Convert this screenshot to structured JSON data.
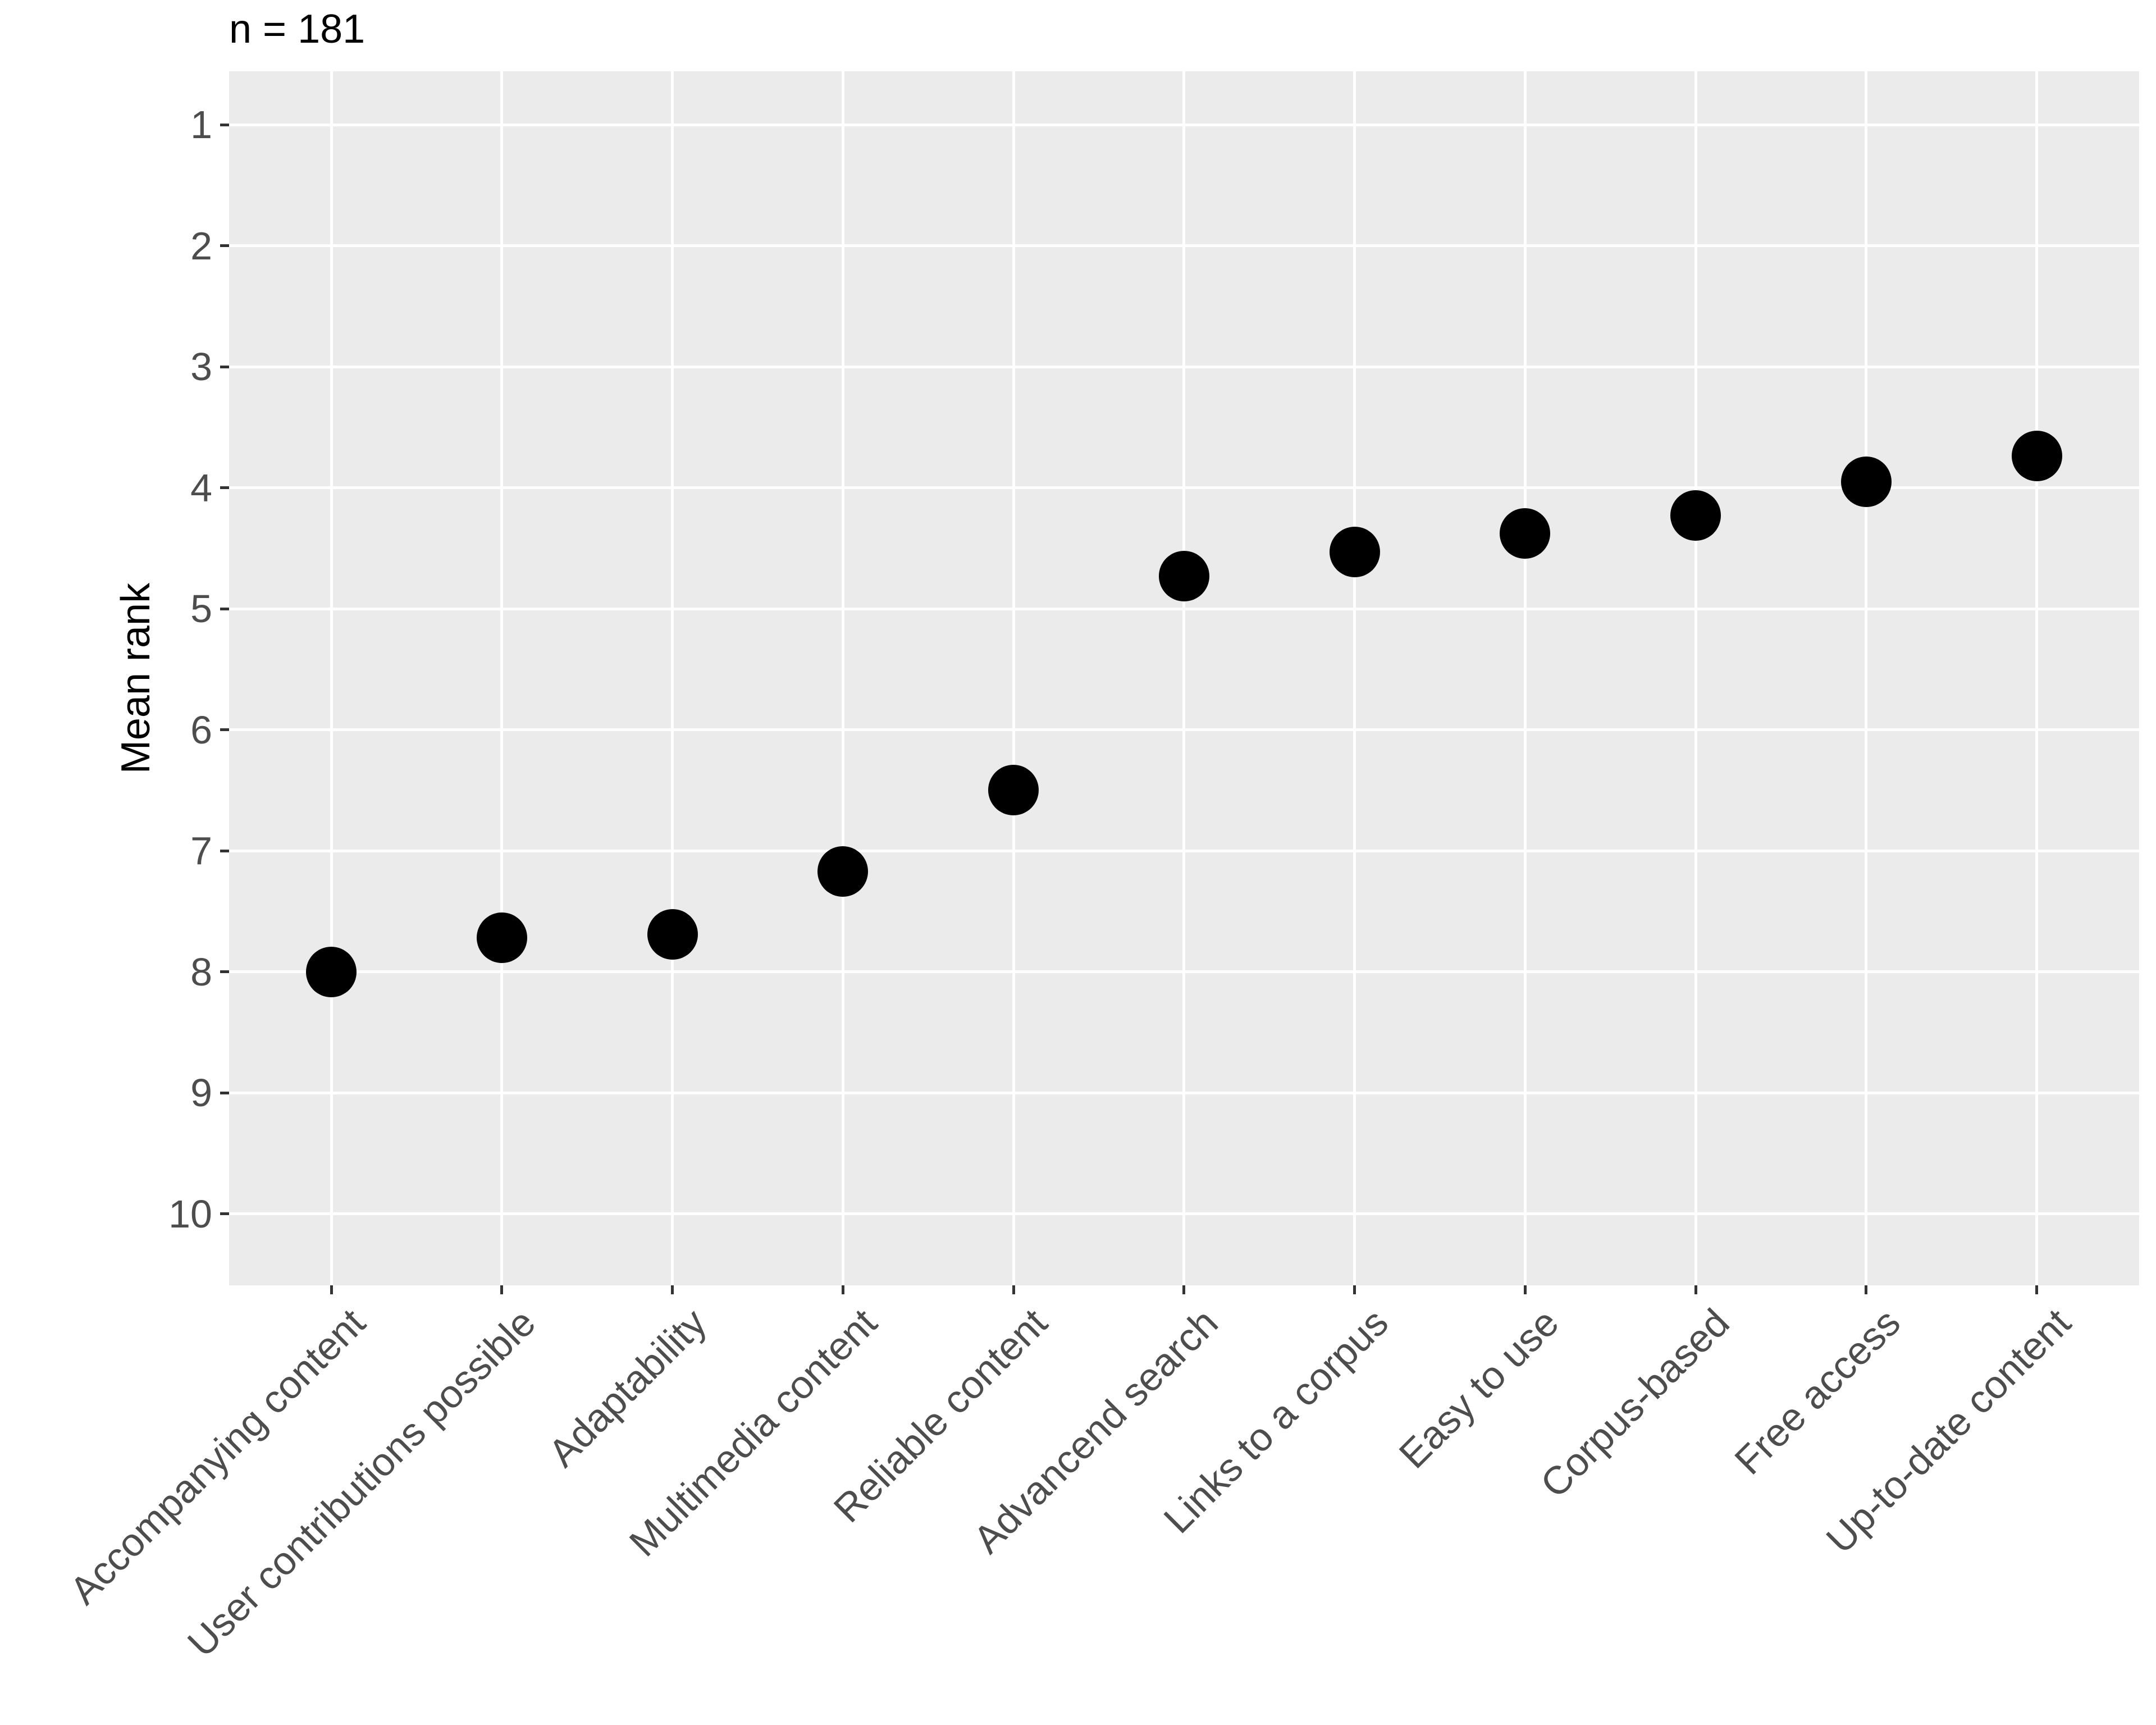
{
  "title": "n = 181",
  "y_axis": {
    "label": "Mean rank",
    "tick_labels": [
      "1",
      "2",
      "3",
      "4",
      "5",
      "6",
      "7",
      "8",
      "9",
      "10"
    ],
    "reversed": true
  },
  "chart_data": {
    "type": "scatter",
    "title": "n = 181",
    "xlabel": "",
    "ylabel": "Mean rank",
    "categories": [
      "Accompanying content",
      "User contributions possible",
      "Adaptability",
      "Multimedia content",
      "Reliable content",
      "Advancend search",
      "Links to a corpus",
      "Easy to use",
      "Corpus-based",
      "Free access",
      "Up-to-date content"
    ],
    "values": [
      8.0,
      7.72,
      7.69,
      7.17,
      6.5,
      4.73,
      4.53,
      4.38,
      4.23,
      3.95,
      3.74
    ],
    "y_ticks": [
      1,
      2,
      3,
      4,
      5,
      6,
      7,
      8,
      9,
      10
    ],
    "ylim_top_to_bottom": [
      0.56,
      10.59
    ],
    "y_axis_reversed": true,
    "x_tick_rotation_deg": 45,
    "grid": "major gridlines only, white on gray panel",
    "legend_position": "none",
    "colors": {
      "panel_background": "#EBEBEB",
      "gridline": "#FFFFFF",
      "point": "#000000",
      "axis_text": "#4D4D4D",
      "tick_mark": "#333333",
      "title_text": "#000000"
    }
  }
}
